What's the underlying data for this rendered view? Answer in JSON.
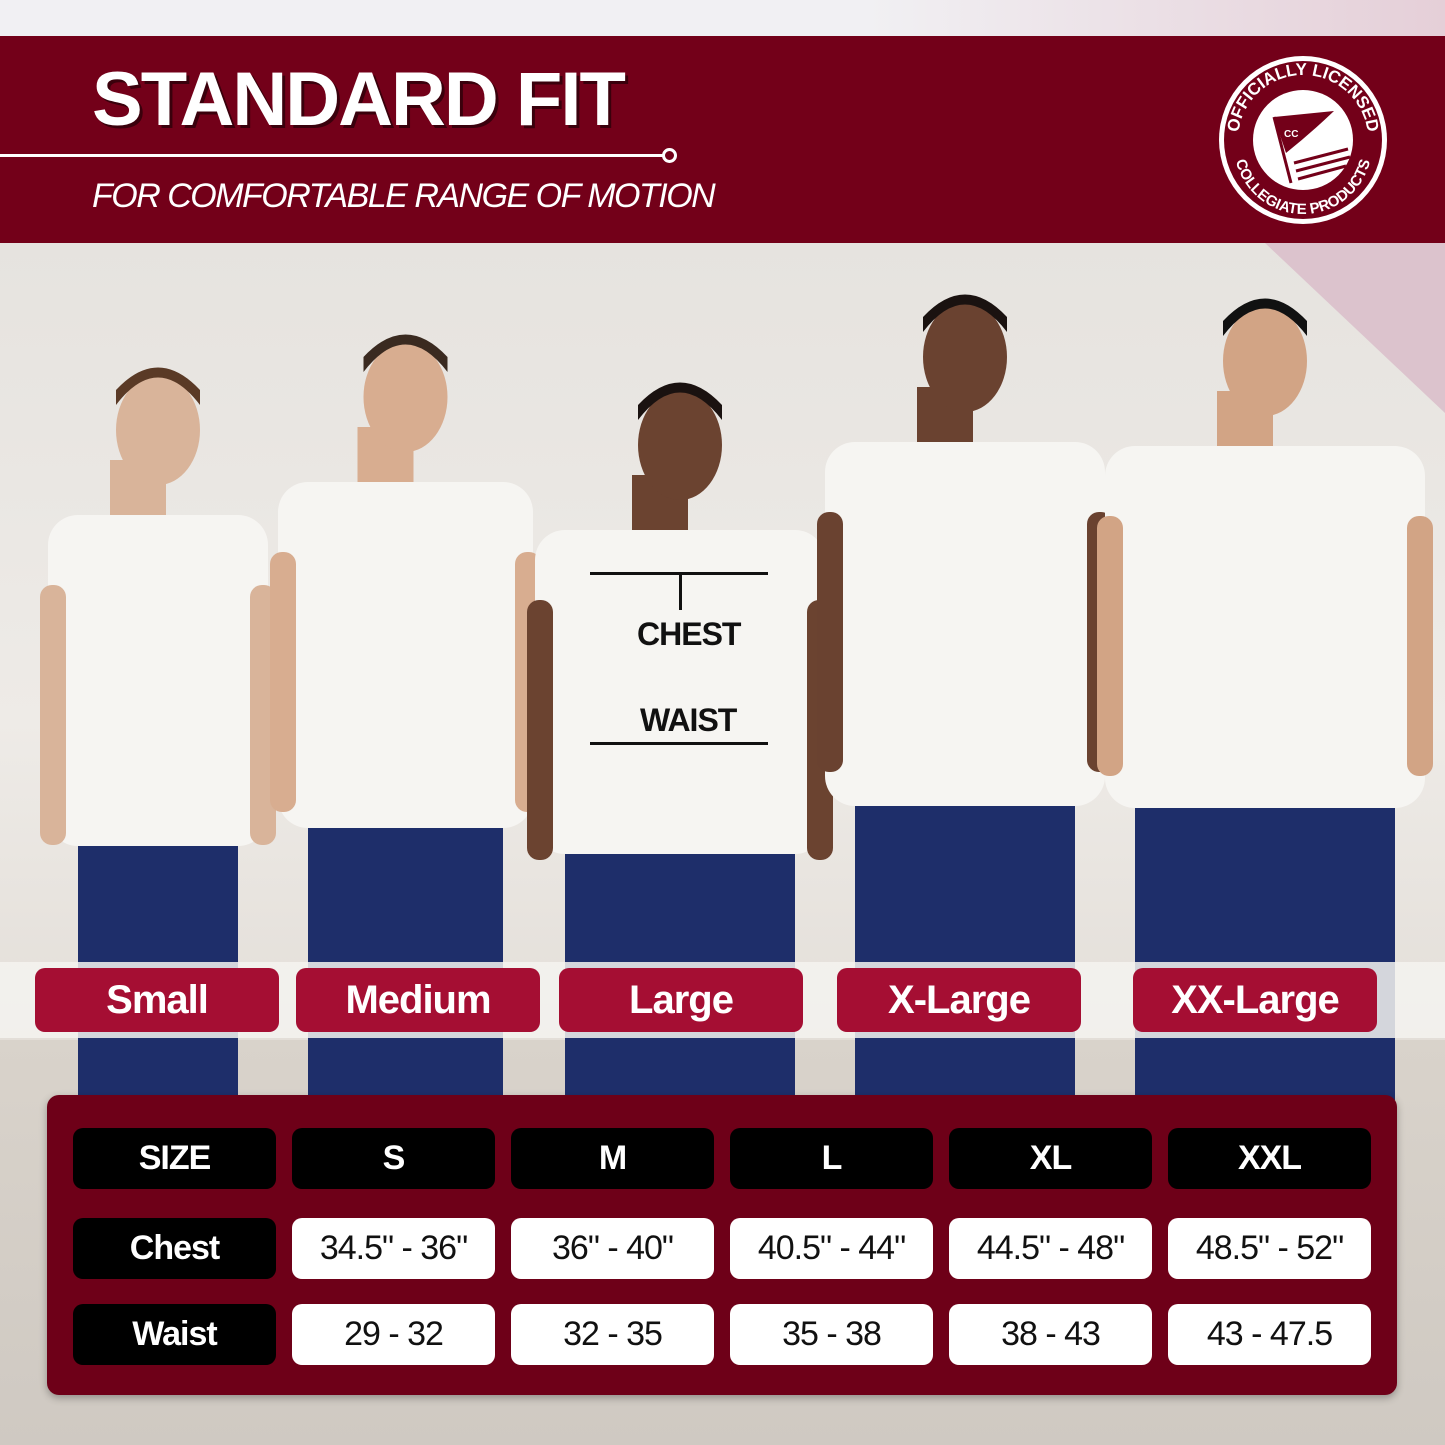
{
  "header": {
    "title": "STANDARD FIT",
    "subtitle": "FOR COMFORTABLE RANGE OF MOTION"
  },
  "logo": {
    "top_text": "OFFICIALLY LICENSED",
    "bottom_text": "COLLEGIATE PRODUCTS",
    "flag_text": "CC"
  },
  "colors": {
    "banner": "#730019",
    "pill": "#a50e33",
    "table": "#6e0018"
  },
  "measure_labels": {
    "chest": "CHEST",
    "waist": "WAIST"
  },
  "size_labels": [
    "Small",
    "Medium",
    "Large",
    "X-Large",
    "XX-Large"
  ],
  "size_table": {
    "header": [
      "SIZE",
      "S",
      "M",
      "L",
      "XL",
      "XXL"
    ],
    "rows": [
      {
        "label": "Chest",
        "values": [
          "34.5\" - 36\"",
          "36\" - 40\"",
          "40.5\" - 44\"",
          "44.5\" - 48\"",
          "48.5\" - 52\""
        ]
      },
      {
        "label": "Waist",
        "values": [
          "29 - 32",
          "32 - 35",
          "35 - 38",
          "38 - 43",
          "43 - 47.5"
        ]
      }
    ]
  }
}
